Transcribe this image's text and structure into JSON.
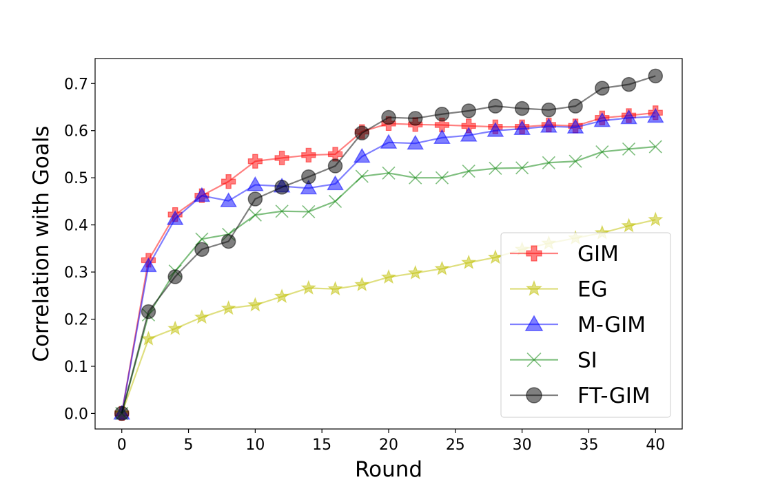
{
  "chart_data": {
    "type": "line",
    "xlabel": "Round",
    "ylabel": "Correlation with Goals",
    "xlim": [
      -2,
      42
    ],
    "ylim": [
      -0.033,
      0.753
    ],
    "xticks": [
      0,
      5,
      10,
      15,
      20,
      25,
      30,
      35,
      40
    ],
    "yticks": [
      0.0,
      0.1,
      0.2,
      0.3,
      0.4,
      0.5,
      0.6,
      0.7
    ],
    "xtick_labels": [
      "0",
      "5",
      "10",
      "15",
      "20",
      "25",
      "30",
      "35",
      "40"
    ],
    "ytick_labels": [
      "0.0",
      "0.1",
      "0.2",
      "0.3",
      "0.4",
      "0.5",
      "0.6",
      "0.7"
    ],
    "grid": false,
    "legend_position": "lower-right",
    "x": [
      0,
      2,
      4,
      6,
      8,
      10,
      12,
      14,
      16,
      18,
      20,
      22,
      24,
      26,
      28,
      30,
      32,
      34,
      36,
      38,
      40
    ],
    "series": [
      {
        "name": "GIM",
        "color": "#ff0000",
        "marker": "plus",
        "values": [
          0.0,
          0.325,
          0.422,
          0.462,
          0.492,
          0.535,
          0.542,
          0.548,
          0.55,
          0.598,
          0.615,
          0.613,
          0.612,
          0.61,
          0.608,
          0.608,
          0.612,
          0.61,
          0.627,
          0.632,
          0.638
        ]
      },
      {
        "name": "EG",
        "color": "#bfbf00",
        "marker": "star",
        "values": [
          0.0,
          0.158,
          0.18,
          0.204,
          0.223,
          0.23,
          0.248,
          0.266,
          0.264,
          0.273,
          0.289,
          0.298,
          0.307,
          0.32,
          0.331,
          0.348,
          0.361,
          0.372,
          0.383,
          0.398,
          0.411
        ]
      },
      {
        "name": "M-GIM",
        "color": "#0000ff",
        "marker": "triangle",
        "values": [
          0.0,
          0.313,
          0.413,
          0.462,
          0.451,
          0.485,
          0.482,
          0.478,
          0.487,
          0.545,
          0.575,
          0.573,
          0.585,
          0.59,
          0.6,
          0.604,
          0.609,
          0.607,
          0.621,
          0.627,
          0.63
        ]
      },
      {
        "name": "SI",
        "color": "#008000",
        "marker": "x",
        "values": [
          0.0,
          0.209,
          0.302,
          0.37,
          0.38,
          0.421,
          0.429,
          0.428,
          0.45,
          0.503,
          0.51,
          0.5,
          0.5,
          0.514,
          0.52,
          0.521,
          0.532,
          0.535,
          0.555,
          0.561,
          0.566
        ]
      },
      {
        "name": "FT-GIM",
        "color": "#000000",
        "marker": "circle",
        "values": [
          0.0,
          0.216,
          0.29,
          0.348,
          0.365,
          0.455,
          0.48,
          0.502,
          0.525,
          0.595,
          0.628,
          0.626,
          0.635,
          0.642,
          0.652,
          0.647,
          0.644,
          0.652,
          0.69,
          0.698,
          0.716
        ]
      }
    ]
  }
}
